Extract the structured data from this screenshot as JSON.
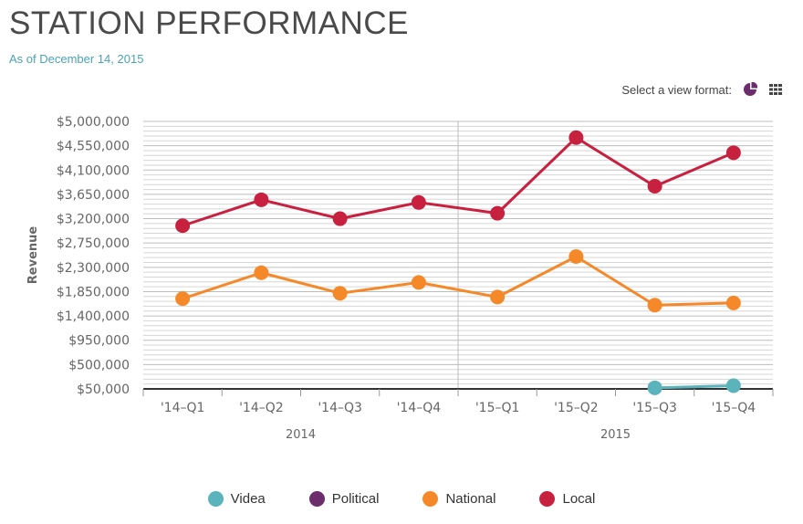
{
  "header": {
    "title": "STATION PERFORMANCE",
    "subtitle": "As of December 14, 2015"
  },
  "view_format": {
    "label": "Select a view format:",
    "icons": [
      "pie-chart-icon",
      "grid-icon"
    ],
    "pie_color": "#6b2d6b",
    "grid_color": "#444444"
  },
  "colors": {
    "Videa": "#5bb3bb",
    "Political": "#6b2d6b",
    "National": "#f5892a",
    "Local": "#c8203f"
  },
  "chart_data": {
    "type": "line",
    "title": "STATION PERFORMANCE",
    "ylabel": "Revenue",
    "xlabel": "",
    "categories": [
      "'14–Q1",
      "'14–Q2",
      "'14–Q3",
      "'14–Q4",
      "'15–Q1",
      "'15–Q2",
      "'15–Q3",
      "'15–Q4"
    ],
    "groups": [
      {
        "label": "2014",
        "from": 0,
        "to": 3
      },
      {
        "label": "2015",
        "from": 4,
        "to": 7
      }
    ],
    "yticks": [
      "$50,000",
      "$500,000",
      "$950,000",
      "$1,400,000",
      "$1,850,000",
      "$2,300,000",
      "$2,750,000",
      "$3,200,000",
      "$3,650,000",
      "$4,100,000",
      "$4,550,000",
      "$5,000,000"
    ],
    "ylim": [
      50000,
      5000000
    ],
    "grid": true,
    "series": [
      {
        "name": "Videa",
        "values": [
          null,
          null,
          null,
          null,
          null,
          null,
          70000,
          110000
        ]
      },
      {
        "name": "Political",
        "values": [
          null,
          null,
          null,
          null,
          null,
          null,
          null,
          null
        ]
      },
      {
        "name": "National",
        "values": [
          1720000,
          2200000,
          1820000,
          2020000,
          1750000,
          2500000,
          1600000,
          1640000
        ]
      },
      {
        "name": "Local",
        "values": [
          3070000,
          3550000,
          3200000,
          3500000,
          3300000,
          4700000,
          3800000,
          4420000
        ]
      }
    ],
    "legend": [
      "Videa",
      "Political",
      "National",
      "Local"
    ],
    "legend_position": "bottom"
  }
}
